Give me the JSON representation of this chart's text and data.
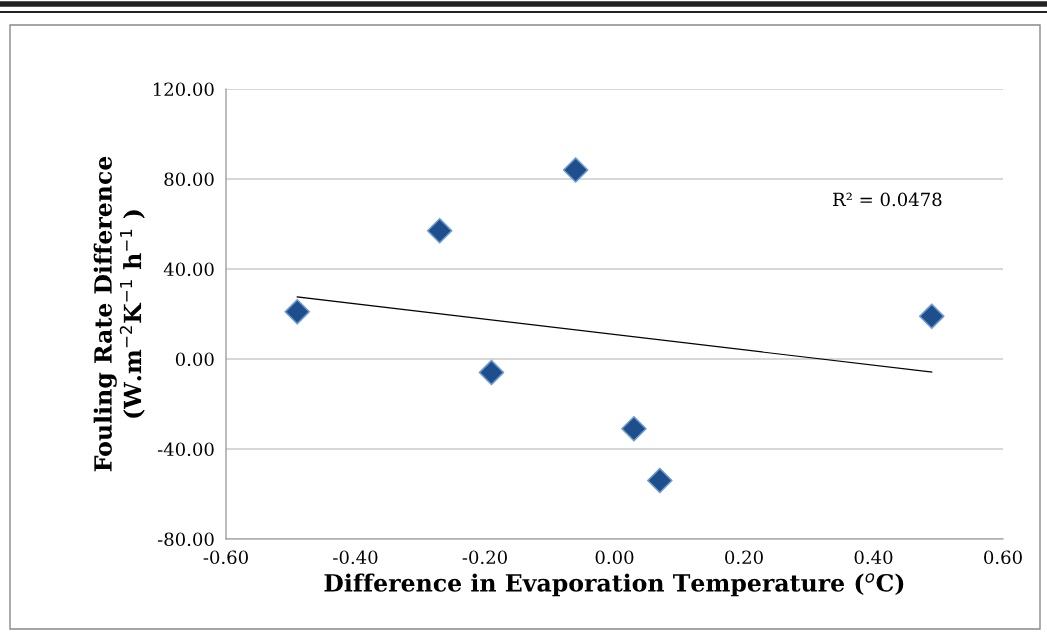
{
  "chart_data": {
    "type": "scatter",
    "xlabel": "Difference in Evaporation Temperature ($^{o}$C)",
    "ylabel": "Fouling Rate Difference\n(W.m$^{−2}$K$^{−1}$ h$^{−1}$ )",
    "annotations": [
      "R² = 0.0478"
    ],
    "series": [
      {
        "type": "scatter",
        "color": "#1f4e8c",
        "x": [
          -0.49,
          -0.27,
          -0.19,
          -0.06,
          0.03,
          0.07,
          0.49
        ],
        "values": [
          21,
          57,
          -6,
          84,
          -31,
          -54,
          19
        ],
        "marker": "diamond"
      },
      {
        "type": "line",
        "color": "#000000",
        "x": [
          -0.49,
          0.49
        ],
        "values": [
          27.6,
          -5.8
        ],
        "marker": "none"
      }
    ],
    "xlim": [
      -0.6,
      0.6
    ],
    "xticks": [
      {
        "value": -0.6,
        "label": "-0.60"
      },
      {
        "value": -0.4,
        "label": "-0.40"
      },
      {
        "value": -0.2,
        "label": "-0.20"
      },
      {
        "value": 0,
        "label": "0.00"
      },
      {
        "value": 0.2,
        "label": "0.20"
      },
      {
        "value": 0.4,
        "label": "0.40"
      },
      {
        "value": 0.6,
        "label": "0.60"
      }
    ],
    "ylim": [
      -80,
      120
    ],
    "yticks": [
      {
        "value": -80,
        "label": "-80.00"
      },
      {
        "value": -40,
        "label": "-40.00"
      },
      {
        "value": 0,
        "label": "0.00"
      },
      {
        "value": 40,
        "label": "40.00"
      },
      {
        "value": 80,
        "label": "80.00"
      },
      {
        "value": 120,
        "label": "120.00"
      }
    ],
    "grid": "y",
    "legend": false
  }
}
